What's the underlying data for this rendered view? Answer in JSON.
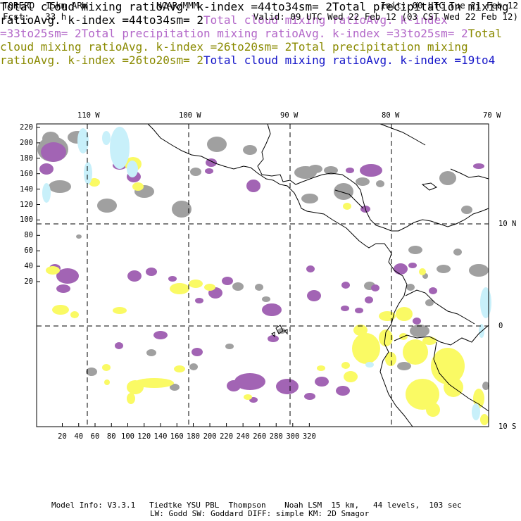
{
  "header": {
    "model": "TORERO  15km ARW",
    "org": "NCAR/MMM",
    "init": "Init: 00 UTC Tue 21 Feb 12",
    "fcst": "Fcst:   33 h",
    "valid": "Valid: 09 UTC Wed 22 Feb 12 (03 CST Wed 22 Feb 12)"
  },
  "legend": [
    {
      "field": "Total cloud mixing ratio",
      "stat": "Avg. k-index =",
      "lo": "44",
      "to": "to",
      "hi": "34",
      "sm": "sm= 2",
      "color": "#000000"
    },
    {
      "field": "Total precipitation mixing ratio",
      "stat": "Avg. k-index =",
      "lo": "44",
      "to": "to",
      "hi": "34",
      "sm": "sm= 2",
      "color": "#000000"
    },
    {
      "field": "Total cloud mixing ratio",
      "stat": "Avg. k-index =",
      "lo": "33",
      "to": "to",
      "hi": "25",
      "sm": "sm= 2",
      "color": "#b266c8"
    },
    {
      "field": "Total precipitation mixing ratio",
      "stat": "Avg. k-index =",
      "lo": "33",
      "to": "to",
      "hi": "25",
      "sm": "sm= 2",
      "color": "#b266c8"
    },
    {
      "field": "Total cloud mixing ratio",
      "stat": "Avg. k-index =",
      "lo": "26",
      "to": "to",
      "hi": "20",
      "sm": "sm= 2",
      "color": "#8a8a00"
    },
    {
      "field": "Total precipitation mixing ratio",
      "stat": "Avg. k-index =",
      "lo": "26",
      "to": "to",
      "hi": "20",
      "sm": "sm= 2",
      "color": "#8a8a00"
    },
    {
      "field": "Total cloud mixing ratio",
      "stat": "Avg. k-index =",
      "lo": "19",
      "to": "to",
      "hi": "4",
      "sm": "",
      "color": "#1414c8"
    }
  ],
  "map": {
    "top_labels": [
      "110 W",
      "100 W",
      "90 W",
      "80 W",
      "70 W"
    ],
    "right_labels": [
      "10 N",
      "0",
      "10 S"
    ],
    "y_ticks": [
      "220",
      "200",
      "180",
      "160",
      "140",
      "120",
      "100",
      "80",
      "60",
      "40",
      "20"
    ],
    "x_ticks": [
      "20",
      "40",
      "60",
      "80",
      "100",
      "120",
      "140",
      "160",
      "180",
      "200",
      "220",
      "240",
      "260",
      "280",
      "300",
      "320"
    ],
    "colors": {
      "gray": "#a0a0a0",
      "purple": "#a264b4",
      "yellow": "#fafa64",
      "cyan": "#c8f0fa"
    }
  },
  "footer": {
    "line1": "Model Info: V3.3.1   Tiedtke YSU PBL  Thompson    Noah LSM  15 km,   44 levels,  103 sec",
    "line2": "LW: Godd SW: Goddard DIFF: simple KM: 2D Smagor"
  }
}
